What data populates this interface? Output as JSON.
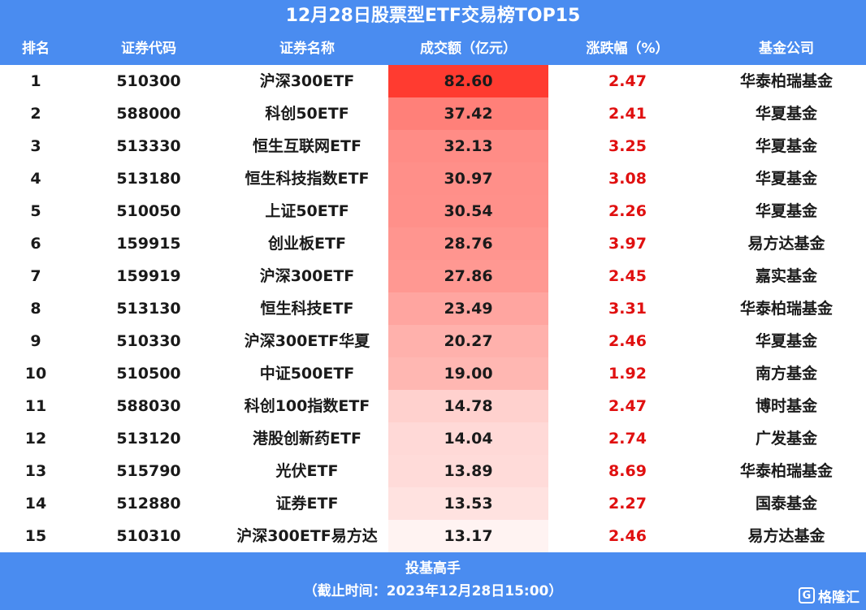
{
  "title": "12月28日股票型ETF交易榜TOP15",
  "columns": [
    "排名",
    "证券代码",
    "证券名称",
    "成交额（亿元）",
    "涨跌幅（%）",
    "基金公司"
  ],
  "colors": {
    "header": "#4a8cf0",
    "bar_max": "#ff3b30",
    "bar_min": "#fff3f2",
    "change": "#e01010"
  },
  "chart_data": {
    "type": "table",
    "title": "12月28日股票型ETF交易榜TOP15",
    "columns": [
      "排名",
      "证券代码",
      "证券名称",
      "成交额（亿元）",
      "涨跌幅（%）",
      "基金公司"
    ],
    "rows": [
      [
        "1",
        "510300",
        "沪深300ETF",
        "82.60",
        "2.47",
        "华泰柏瑞基金"
      ],
      [
        "2",
        "588000",
        "科创50ETF",
        "37.42",
        "2.41",
        "华夏基金"
      ],
      [
        "3",
        "513330",
        "恒生互联网ETF",
        "32.13",
        "3.25",
        "华夏基金"
      ],
      [
        "4",
        "513180",
        "恒生科技指数ETF",
        "30.97",
        "3.08",
        "华夏基金"
      ],
      [
        "5",
        "510050",
        "上证50ETF",
        "30.54",
        "2.26",
        "华夏基金"
      ],
      [
        "6",
        "159915",
        "创业板ETF",
        "28.76",
        "3.97",
        "易方达基金"
      ],
      [
        "7",
        "159919",
        "沪深300ETF",
        "27.86",
        "2.45",
        "嘉实基金"
      ],
      [
        "8",
        "513130",
        "恒生科技ETF",
        "23.49",
        "3.31",
        "华泰柏瑞基金"
      ],
      [
        "9",
        "510330",
        "沪深300ETF华夏",
        "20.27",
        "2.46",
        "华夏基金"
      ],
      [
        "10",
        "510500",
        "中证500ETF",
        "19.00",
        "1.92",
        "南方基金"
      ],
      [
        "11",
        "588030",
        "科创100指数ETF",
        "14.78",
        "2.47",
        "博时基金"
      ],
      [
        "12",
        "513120",
        "港股创新药ETF",
        "14.04",
        "2.74",
        "广发基金"
      ],
      [
        "13",
        "515790",
        "光伏ETF",
        "13.89",
        "8.69",
        "华泰柏瑞基金"
      ],
      [
        "14",
        "512880",
        "证券ETF",
        "13.53",
        "2.27",
        "国泰基金"
      ],
      [
        "15",
        "510310",
        "沪深300ETF易方达",
        "13.17",
        "2.46",
        "易方达基金"
      ]
    ]
  },
  "footer": {
    "source": "投基高手",
    "note": "（截止时间：2023年12月28日15:00）"
  },
  "logo": {
    "mark": "G",
    "text": "格隆汇"
  }
}
